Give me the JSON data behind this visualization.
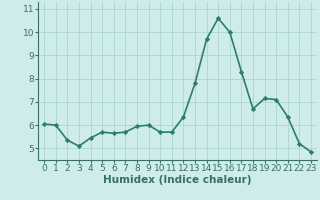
{
  "x": [
    0,
    1,
    2,
    3,
    4,
    5,
    6,
    7,
    8,
    9,
    10,
    11,
    12,
    13,
    14,
    15,
    16,
    17,
    18,
    19,
    20,
    21,
    22,
    23
  ],
  "y": [
    6.05,
    6.0,
    5.35,
    5.1,
    5.45,
    5.7,
    5.65,
    5.7,
    5.95,
    6.0,
    5.7,
    5.7,
    6.35,
    7.8,
    9.7,
    10.6,
    10.0,
    8.3,
    6.7,
    7.15,
    7.1,
    6.35,
    5.2,
    4.85
  ],
  "line_color": "#2d7c6e",
  "marker": "D",
  "marker_size": 2.2,
  "bg_color": "#ceecea",
  "grid_color": "#b0d8d5",
  "xlabel": "Humidex (Indice chaleur)",
  "xlim": [
    -0.5,
    23.5
  ],
  "ylim": [
    4.5,
    11.3
  ],
  "yticks": [
    5,
    6,
    7,
    8,
    9,
    10,
    11
  ],
  "xticks": [
    0,
    1,
    2,
    3,
    4,
    5,
    6,
    7,
    8,
    9,
    10,
    11,
    12,
    13,
    14,
    15,
    16,
    17,
    18,
    19,
    20,
    21,
    22,
    23
  ],
  "xlabel_fontsize": 7.5,
  "tick_fontsize": 6.5,
  "line_width": 1.2,
  "axis_color": "#3a7068"
}
